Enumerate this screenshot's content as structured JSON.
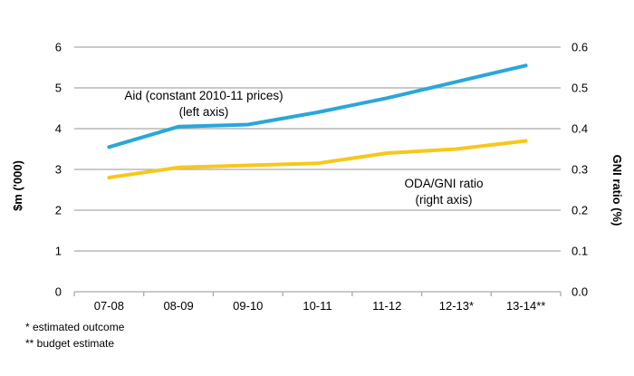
{
  "chart_data": {
    "type": "line",
    "categories": [
      "07-08",
      "08-09",
      "09-10",
      "10-11",
      "11-12",
      "12-13*",
      "13-14**"
    ],
    "series": [
      {
        "name": "Aid (constant 2010-11 prices)",
        "axis": "left",
        "color": "#2BA6DA",
        "values": [
          3.55,
          4.05,
          4.1,
          4.4,
          4.75,
          5.15,
          5.55
        ]
      },
      {
        "name": "ODA/GNI ratio",
        "axis": "right",
        "color": "#F6C81C",
        "values": [
          0.28,
          0.305,
          0.31,
          0.315,
          0.34,
          0.35,
          0.37
        ]
      }
    ],
    "left_axis": {
      "label": "$m ('000)",
      "min": 0,
      "max": 6,
      "ticks": [
        "0",
        "1",
        "2",
        "3",
        "4",
        "5",
        "6"
      ]
    },
    "right_axis": {
      "label": "GNI ratio (%)",
      "min": 0,
      "max": 0.6,
      "ticks": [
        "0.0",
        "0.1",
        "0.2",
        "0.3",
        "0.4",
        "0.5",
        "0.6"
      ]
    },
    "grid": true,
    "grid_color": "#ABABAB",
    "legend_position": "none",
    "annotations": [
      {
        "lines": [
          "Aid (constant 2010-11 prices)",
          "(left axis)"
        ]
      },
      {
        "lines": [
          "ODA/GNI ratio",
          "(right axis)"
        ]
      }
    ]
  },
  "footnotes": [
    "* estimated outcome",
    "** budget estimate"
  ]
}
